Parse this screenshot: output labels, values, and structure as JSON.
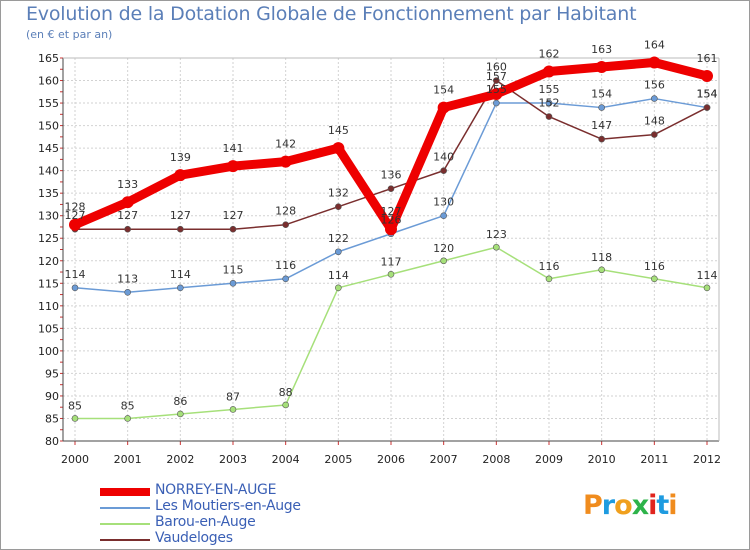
{
  "header": {
    "title": "Evolution de la Dotation Globale de Fonctionnement par Habitant",
    "subtitle": "(en € et par an)"
  },
  "chart_data": {
    "type": "line",
    "title": "Evolution de la Dotation Globale de Fonctionnement par Habitant",
    "subtitle": "(en € et par an)",
    "xlabel": "",
    "ylabel": "",
    "ylim": [
      80,
      165
    ],
    "yticks": [
      80,
      85,
      90,
      95,
      100,
      105,
      110,
      115,
      120,
      125,
      130,
      135,
      140,
      145,
      150,
      155,
      160,
      165
    ],
    "grid": true,
    "x": [
      "2000",
      "2001",
      "2002",
      "2003",
      "2004",
      "2005",
      "2006",
      "2007",
      "2008",
      "2009",
      "2010",
      "2011",
      "2012"
    ],
    "series": [
      {
        "name": "NORREY-EN-AUGE",
        "color": "#ee0000",
        "values": [
          128,
          133,
          139,
          141,
          142,
          145,
          127,
          154,
          157,
          162,
          163,
          164,
          161
        ]
      },
      {
        "name": "Les Moutiers-en-Auge",
        "color": "#6b9bd6",
        "values": [
          114,
          113,
          114,
          115,
          116,
          122,
          126,
          130,
          155,
          155,
          154,
          156,
          154
        ]
      },
      {
        "name": "Barou-en-Auge",
        "color": "#a6e07a",
        "values": [
          85,
          85,
          86,
          87,
          88,
          114,
          117,
          120,
          123,
          116,
          118,
          116,
          114
        ]
      },
      {
        "name": "Vaudeloges",
        "color": "#7a2e2e",
        "values": [
          127,
          127,
          127,
          127,
          128,
          132,
          136,
          140,
          160,
          152,
          147,
          148,
          154
        ]
      }
    ],
    "legend_position": "bottom-left"
  },
  "branding": {
    "logo_text": "Proxiti"
  }
}
